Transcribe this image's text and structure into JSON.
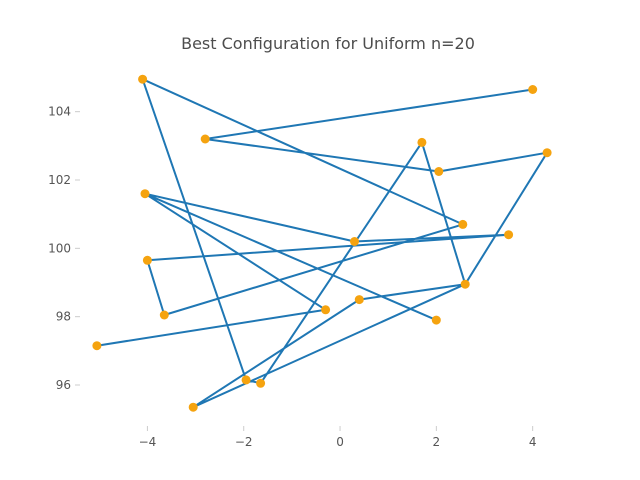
{
  "chart_data": {
    "type": "line",
    "title": "Best Configuration for Uniform n=20",
    "xlabel": "",
    "ylabel": "",
    "xlim": [
      -5.4,
      4.9
    ],
    "ylim": [
      94.8,
      105.6
    ],
    "xticks": [
      -4,
      -2,
      0,
      2,
      4
    ],
    "xtick_labels": [
      "−4",
      "−2",
      "0",
      "2",
      "4"
    ],
    "yticks": [
      96,
      98,
      100,
      102,
      104
    ],
    "yticks_labels": [
      "96",
      "98",
      "100",
      "102",
      "104"
    ],
    "grid": false,
    "colors": {
      "line": "#1f77b4",
      "marker": "#f5a30f"
    },
    "series": [
      {
        "name": "route",
        "points": [
          [
            -2.8,
            103.2
          ],
          [
            4.0,
            104.65
          ],
          [
            -2.8,
            103.2
          ],
          [
            2.05,
            102.25
          ],
          [
            4.3,
            102.8
          ],
          [
            2.6,
            98.95
          ],
          [
            -3.05,
            95.35
          ],
          [
            0.4,
            98.5
          ],
          [
            2.6,
            98.95
          ],
          [
            1.7,
            103.1
          ],
          [
            -1.65,
            96.05
          ],
          [
            -1.95,
            96.15
          ],
          [
            -4.1,
            104.95
          ],
          [
            2.55,
            100.7
          ],
          [
            -3.65,
            98.05
          ],
          [
            -4.0,
            99.65
          ],
          [
            3.5,
            100.4
          ],
          [
            0.3,
            100.2
          ],
          [
            -4.05,
            101.6
          ],
          [
            2.0,
            97.9
          ],
          [
            -4.05,
            101.6
          ],
          [
            -0.3,
            98.2
          ],
          [
            -5.05,
            97.15
          ]
        ]
      }
    ]
  }
}
